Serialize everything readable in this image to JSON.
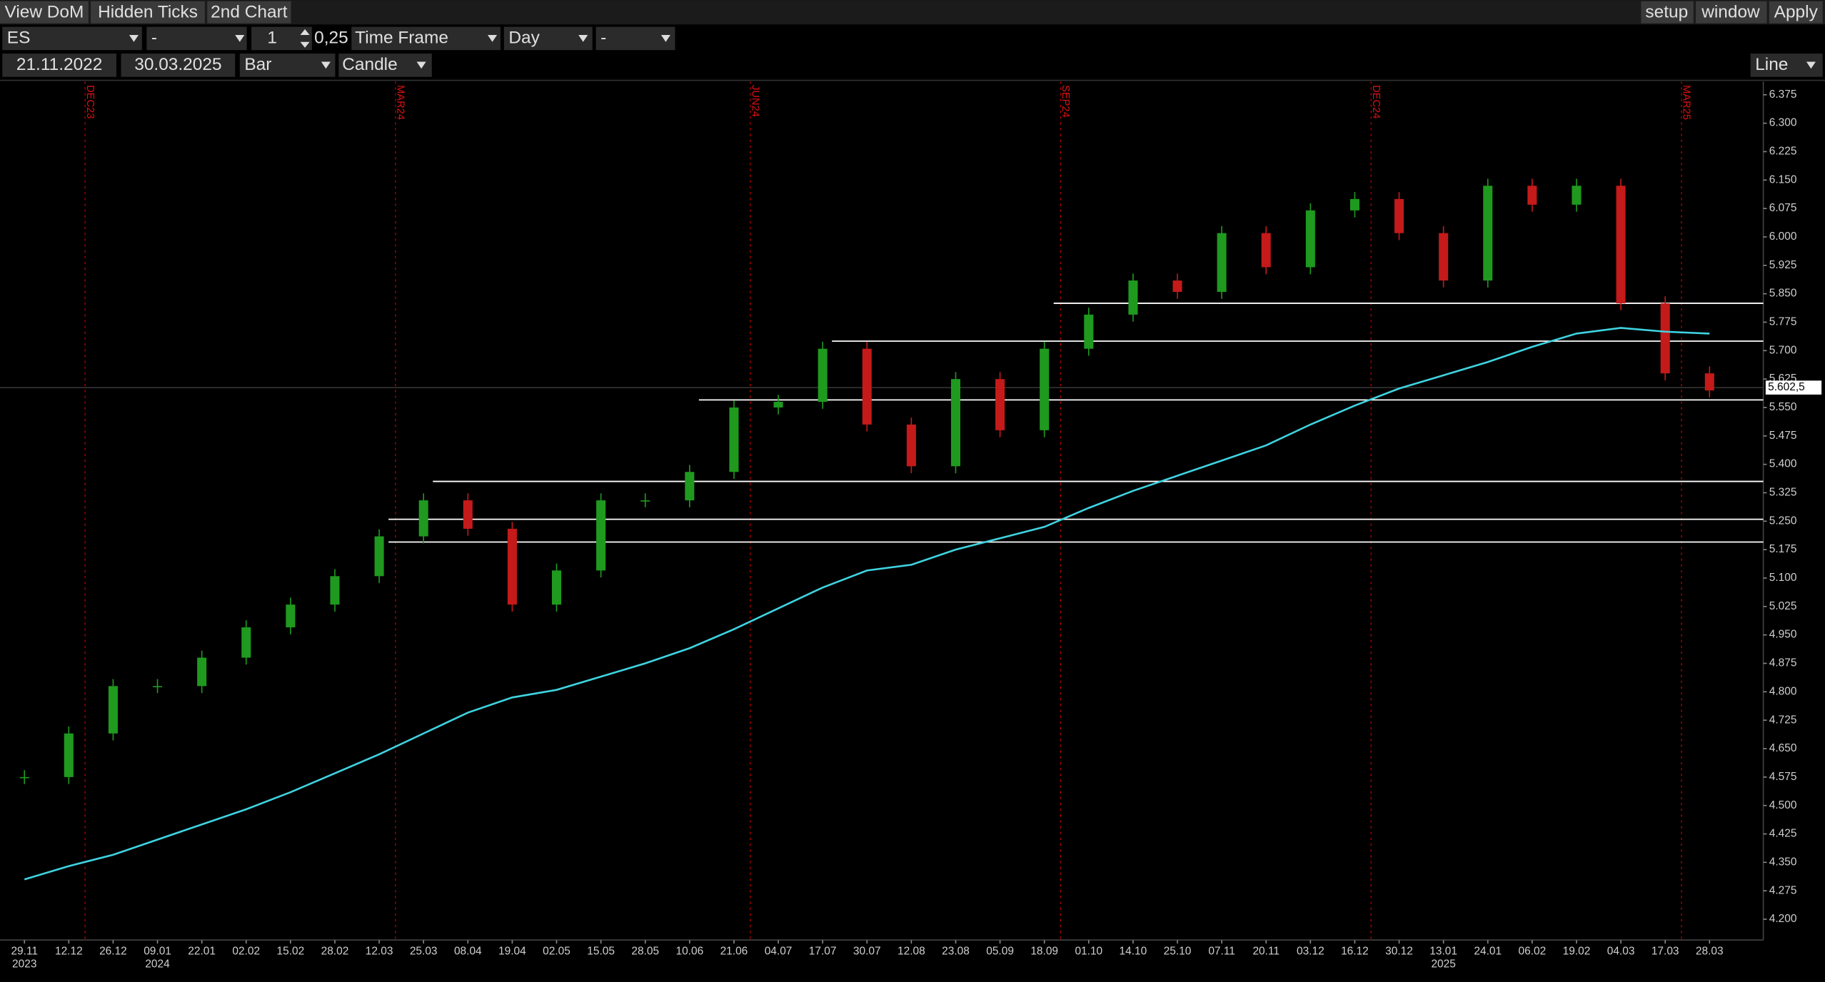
{
  "toolbar": {
    "left": [
      "View DoM",
      "Hidden Ticks",
      "2nd Chart"
    ],
    "right": [
      "setup",
      "window",
      "Apply"
    ],
    "row2": {
      "symbol": "ES",
      "field2": "-",
      "quantity": "1",
      "tick": "0,25",
      "timeframe_label": "Time Frame",
      "timeframe": "Day",
      "field3": "-"
    },
    "row3": {
      "from": "21.11.2022",
      "to": "30.03.2025",
      "bar": "Bar",
      "style": "Candle",
      "line": "Line"
    }
  },
  "chart_data": {
    "type": "candlestick",
    "categories": [
      "29.11",
      "12.12",
      "26.12",
      "09.01",
      "22.01",
      "02.02",
      "15.02",
      "28.02",
      "12.03",
      "25.03",
      "08.04",
      "19.04",
      "02.05",
      "15.05",
      "28.05",
      "10.06",
      "21.06",
      "04.07",
      "17.07",
      "30.07",
      "12.08",
      "23.08",
      "05.09",
      "18.09",
      "01.10",
      "14.10",
      "25.10",
      "07.11",
      "20.11",
      "03.12",
      "16.12",
      "30.12",
      "13.01",
      "24.01",
      "06.02",
      "19.02",
      "04.03",
      "17.03",
      "28.03"
    ],
    "years": [
      {
        "at": "29.11",
        "label": "2023"
      },
      {
        "at": "09.01",
        "label": "2024"
      },
      {
        "at": "13.01",
        "label": "2025"
      }
    ],
    "series": [
      {
        "name": "ES",
        "values": [
          4575,
          4690,
          4815,
          4815,
          4890,
          4970,
          5030,
          5105,
          5210,
          5305,
          5230,
          5030,
          5120,
          5305,
          5305,
          5380,
          5550,
          5565,
          5705,
          5505,
          5395,
          5625,
          5490,
          5705,
          5795,
          5885,
          5855,
          6010,
          5920,
          6070,
          6100,
          6010,
          5885,
          6135,
          6085,
          6135,
          5825,
          5640,
          5595
        ],
        "up_color": "#1f9a1f",
        "down_color": "#c41a1a"
      },
      {
        "name": "MA",
        "values": [
          4305,
          4340,
          4370,
          4410,
          4450,
          4490,
          4535,
          4585,
          4635,
          4690,
          4745,
          4785,
          4805,
          4840,
          4875,
          4915,
          4965,
          5020,
          5075,
          5120,
          5135,
          5175,
          5205,
          5235,
          5285,
          5330,
          5370,
          5410,
          5450,
          5505,
          5555,
          5600,
          5635,
          5670,
          5710,
          5745,
          5760,
          5750,
          5745
        ],
        "color": "#3fd3e0"
      }
    ],
    "levels": [
      {
        "value": 5825,
        "from": "18.09"
      },
      {
        "value": 5725,
        "from": "17.07"
      },
      {
        "value": 5570,
        "from": "10.06"
      },
      {
        "value": 5355,
        "from": "25.03"
      },
      {
        "value": 5255,
        "from": "12.03"
      },
      {
        "value": 5195,
        "from": "12.03"
      }
    ],
    "contracts": [
      {
        "label": "DEC23",
        "at": "12.12"
      },
      {
        "label": "MAR24",
        "at": "12.03"
      },
      {
        "label": "JUN24",
        "at": "21.06"
      },
      {
        "label": "SEP24",
        "at": "18.09"
      },
      {
        "label": "DEC24",
        "at": "16.12"
      },
      {
        "label": "MAR25",
        "at": "17.03"
      }
    ],
    "last_price": {
      "value": 5602.5,
      "label": "5.602,5"
    },
    "ylim": [
      4145,
      6410
    ],
    "yticks": [
      {
        "value": 6375,
        "label": "6.375"
      },
      {
        "value": 6300,
        "label": "6.300"
      },
      {
        "value": 6225,
        "label": "6.225"
      },
      {
        "value": 6150,
        "label": "6.150"
      },
      {
        "value": 6075,
        "label": "6.075"
      },
      {
        "value": 6000,
        "label": "6.000"
      },
      {
        "value": 5925,
        "label": "5.925"
      },
      {
        "value": 5850,
        "label": "5.850"
      },
      {
        "value": 5775,
        "label": "5.775"
      },
      {
        "value": 5700,
        "label": "5.700"
      },
      {
        "value": 5625,
        "label": "5.625"
      },
      {
        "value": 5550,
        "label": "5.550"
      },
      {
        "value": 5475,
        "label": "5.475"
      },
      {
        "value": 5400,
        "label": "5.400"
      },
      {
        "value": 5325,
        "label": "5.325"
      },
      {
        "value": 5250,
        "label": "5.250"
      },
      {
        "value": 5175,
        "label": "5.175"
      },
      {
        "value": 5100,
        "label": "5.100"
      },
      {
        "value": 5025,
        "label": "5.025"
      },
      {
        "value": 4950,
        "label": "4.950"
      },
      {
        "value": 4875,
        "label": "4.875"
      },
      {
        "value": 4800,
        "label": "4.800"
      },
      {
        "value": 4725,
        "label": "4.725"
      },
      {
        "value": 4650,
        "label": "4.650"
      },
      {
        "value": 4575,
        "label": "4.575"
      },
      {
        "value": 4500,
        "label": "4.500"
      },
      {
        "value": 4425,
        "label": "4.425"
      },
      {
        "value": 4350,
        "label": "4.350"
      },
      {
        "value": 4275,
        "label": "4.275"
      },
      {
        "value": 4200,
        "label": "4.200"
      }
    ]
  }
}
